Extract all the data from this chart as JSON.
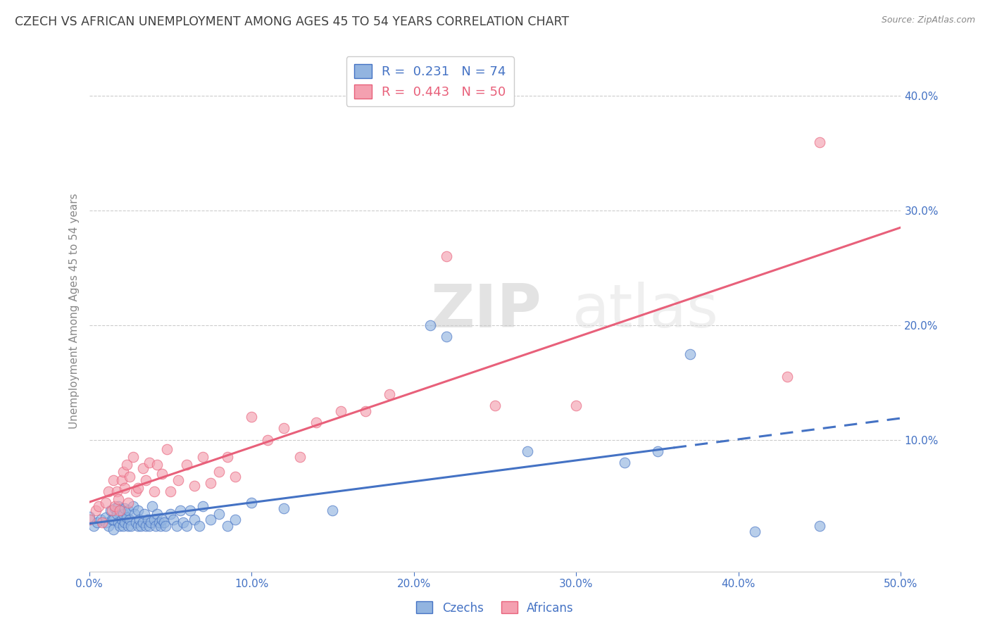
{
  "title": "CZECH VS AFRICAN UNEMPLOYMENT AMONG AGES 45 TO 54 YEARS CORRELATION CHART",
  "source": "Source: ZipAtlas.com",
  "ylabel": "Unemployment Among Ages 45 to 54 years",
  "xlim": [
    0.0,
    0.5
  ],
  "ylim": [
    -0.015,
    0.44
  ],
  "xticks": [
    0.0,
    0.1,
    0.2,
    0.3,
    0.4,
    0.5
  ],
  "yticks_right": [
    0.1,
    0.2,
    0.3,
    0.4
  ],
  "czech_R": 0.231,
  "czech_N": 74,
  "african_R": 0.443,
  "african_N": 50,
  "czech_color": "#92B4E0",
  "african_color": "#F4A0B0",
  "czech_line_color": "#4472C4",
  "african_line_color": "#E8607A",
  "title_color": "#404040",
  "axis_label_color": "#4472C4",
  "watermark_zip": "ZIP",
  "watermark_atlas": "atlas",
  "czech_x": [
    0.0,
    0.003,
    0.005,
    0.007,
    0.01,
    0.01,
    0.012,
    0.013,
    0.014,
    0.015,
    0.015,
    0.016,
    0.017,
    0.018,
    0.018,
    0.019,
    0.02,
    0.02,
    0.021,
    0.021,
    0.022,
    0.022,
    0.023,
    0.024,
    0.024,
    0.025,
    0.026,
    0.027,
    0.028,
    0.029,
    0.03,
    0.03,
    0.031,
    0.032,
    0.033,
    0.034,
    0.035,
    0.036,
    0.037,
    0.038,
    0.039,
    0.04,
    0.041,
    0.042,
    0.043,
    0.044,
    0.045,
    0.046,
    0.047,
    0.05,
    0.052,
    0.054,
    0.056,
    0.058,
    0.06,
    0.062,
    0.065,
    0.068,
    0.07,
    0.075,
    0.08,
    0.085,
    0.09,
    0.1,
    0.12,
    0.15,
    0.21,
    0.22,
    0.27,
    0.33,
    0.35,
    0.37,
    0.41,
    0.45
  ],
  "czech_y": [
    0.033,
    0.025,
    0.028,
    0.03,
    0.028,
    0.032,
    0.025,
    0.038,
    0.03,
    0.022,
    0.03,
    0.04,
    0.035,
    0.028,
    0.042,
    0.025,
    0.03,
    0.038,
    0.025,
    0.035,
    0.028,
    0.04,
    0.032,
    0.025,
    0.038,
    0.03,
    0.025,
    0.042,
    0.035,
    0.028,
    0.025,
    0.038,
    0.03,
    0.025,
    0.028,
    0.035,
    0.025,
    0.03,
    0.025,
    0.028,
    0.042,
    0.03,
    0.025,
    0.035,
    0.028,
    0.025,
    0.03,
    0.028,
    0.025,
    0.035,
    0.03,
    0.025,
    0.038,
    0.028,
    0.025,
    0.038,
    0.03,
    0.025,
    0.042,
    0.03,
    0.035,
    0.025,
    0.03,
    0.045,
    0.04,
    0.038,
    0.2,
    0.19,
    0.09,
    0.08,
    0.09,
    0.175,
    0.02,
    0.025
  ],
  "african_x": [
    0.0,
    0.004,
    0.006,
    0.008,
    0.01,
    0.012,
    0.014,
    0.015,
    0.016,
    0.017,
    0.018,
    0.019,
    0.02,
    0.021,
    0.022,
    0.023,
    0.024,
    0.025,
    0.027,
    0.029,
    0.03,
    0.033,
    0.035,
    0.037,
    0.04,
    0.042,
    0.045,
    0.048,
    0.05,
    0.055,
    0.06,
    0.065,
    0.07,
    0.075,
    0.08,
    0.085,
    0.09,
    0.1,
    0.11,
    0.12,
    0.13,
    0.14,
    0.155,
    0.17,
    0.185,
    0.22,
    0.25,
    0.3,
    0.43,
    0.45
  ],
  "african_y": [
    0.03,
    0.038,
    0.042,
    0.028,
    0.045,
    0.055,
    0.038,
    0.065,
    0.042,
    0.055,
    0.048,
    0.038,
    0.065,
    0.072,
    0.058,
    0.078,
    0.045,
    0.068,
    0.085,
    0.055,
    0.058,
    0.075,
    0.065,
    0.08,
    0.055,
    0.078,
    0.07,
    0.092,
    0.055,
    0.065,
    0.078,
    0.06,
    0.085,
    0.062,
    0.072,
    0.085,
    0.068,
    0.12,
    0.1,
    0.11,
    0.085,
    0.115,
    0.125,
    0.125,
    0.14,
    0.26,
    0.13,
    0.13,
    0.155,
    0.36
  ]
}
